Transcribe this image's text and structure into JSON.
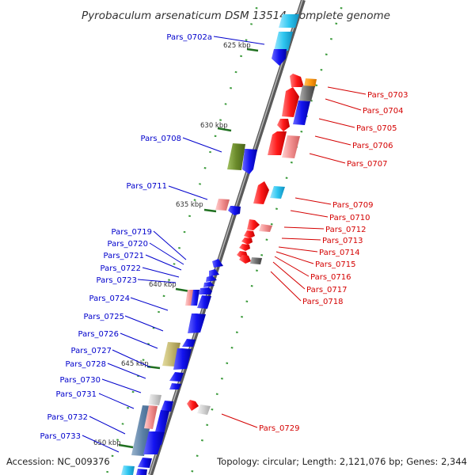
{
  "title": "Pyrobaculum arsenaticum DSM 13514, complete genome",
  "footer": {
    "accession": "Accession: NC_009376",
    "summary": "Topology: circular; Length: 2,121,076 bp; Genes: 2,344"
  },
  "colors": {
    "backbone": "#7f7f7f",
    "forward_label": "#0000cc",
    "reverse_label": "#d40000",
    "tick_major": "#207020",
    "tick_minor": "#3a9a3a"
  },
  "scale_labels": [
    "625 kbp",
    "630 kbp",
    "635 kbp",
    "640 kbp",
    "645 kbp",
    "650 kbp"
  ],
  "forward_labels": [
    "Pars_0702a",
    "Pars_0708",
    "Pars_0711",
    "Pars_0719",
    "Pars_0720",
    "Pars_0721",
    "Pars_0722",
    "Pars_0723",
    "Pars_0724",
    "Pars_0725",
    "Pars_0726",
    "Pars_0727",
    "Pars_0728",
    "Pars_0730",
    "Pars_0731",
    "Pars_0732",
    "Pars_0733"
  ],
  "reverse_labels": [
    "Pars_0703",
    "Pars_0704",
    "Pars_0705",
    "Pars_0706",
    "Pars_0707",
    "Pars_0709",
    "Pars_0710",
    "Pars_0712",
    "Pars_0713",
    "Pars_0714",
    "Pars_0715",
    "Pars_0716",
    "Pars_0717",
    "Pars_0718",
    "Pars_0729"
  ]
}
